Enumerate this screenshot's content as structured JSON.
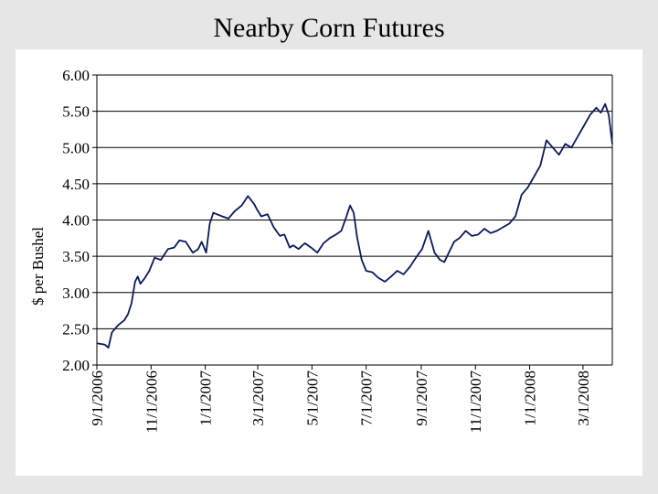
{
  "title": "Nearby Corn Futures",
  "chart_data": {
    "type": "line",
    "title": "Nearby Corn Futures",
    "xlabel": "",
    "ylabel": "$ per Bushel",
    "ylim": [
      2.0,
      6.0
    ],
    "yticks": [
      "2.00",
      "2.50",
      "3.00",
      "3.50",
      "4.00",
      "4.50",
      "5.00",
      "5.50",
      "6.00"
    ],
    "xlim": [
      "2006-09-01",
      "2008-04-03"
    ],
    "xticks": [
      {
        "label": "9/1/2006",
        "date": "2006-09-01"
      },
      {
        "label": "11/1/2006",
        "date": "2006-11-01"
      },
      {
        "label": "1/1/2007",
        "date": "2007-01-01"
      },
      {
        "label": "3/1/2007",
        "date": "2007-03-01"
      },
      {
        "label": "5/1/2007",
        "date": "2007-05-01"
      },
      {
        "label": "7/1/2007",
        "date": "2007-07-01"
      },
      {
        "label": "9/1/2007",
        "date": "2007-09-01"
      },
      {
        "label": "11/1/2007",
        "date": "2007-11-01"
      },
      {
        "label": "1/1/2008",
        "date": "2008-01-01"
      },
      {
        "label": "3/1/2008",
        "date": "2008-03-01"
      }
    ],
    "grid": "horizontal",
    "line_color": "#0a1a5c",
    "series": [
      {
        "x": [
          "2006-09-01",
          "2006-09-10",
          "2006-09-14",
          "2006-09-18",
          "2006-09-25",
          "2006-10-02",
          "2006-10-06",
          "2006-10-10",
          "2006-10-14",
          "2006-10-17",
          "2006-10-20",
          "2006-10-25",
          "2006-10-30",
          "2006-11-05",
          "2006-11-12",
          "2006-11-20",
          "2006-11-27",
          "2006-12-03",
          "2006-12-10",
          "2006-12-18",
          "2006-12-24",
          "2006-12-28",
          "2007-01-02",
          "2007-01-06",
          "2007-01-10",
          "2007-01-14",
          "2007-01-20",
          "2007-01-27",
          "2007-02-03",
          "2007-02-11",
          "2007-02-18",
          "2007-02-25",
          "2007-02-28",
          "2007-03-05",
          "2007-03-12",
          "2007-03-19",
          "2007-03-26",
          "2007-03-31",
          "2007-04-06",
          "2007-04-10",
          "2007-04-16",
          "2007-04-23",
          "2007-04-30",
          "2007-05-07",
          "2007-05-14",
          "2007-05-21",
          "2007-05-28",
          "2007-06-03",
          "2007-06-08",
          "2007-06-13",
          "2007-06-17",
          "2007-06-21",
          "2007-06-26",
          "2007-07-01",
          "2007-07-08",
          "2007-07-15",
          "2007-07-22",
          "2007-07-29",
          "2007-08-05",
          "2007-08-12",
          "2007-08-19",
          "2007-08-26",
          "2007-09-02",
          "2007-09-09",
          "2007-09-16",
          "2007-09-22",
          "2007-09-27",
          "2007-10-02",
          "2007-10-08",
          "2007-10-14",
          "2007-10-21",
          "2007-10-28",
          "2007-11-04",
          "2007-11-11",
          "2007-11-18",
          "2007-11-25",
          "2007-12-02",
          "2007-12-09",
          "2007-12-16",
          "2007-12-23",
          "2007-12-30",
          "2008-01-06",
          "2008-01-13",
          "2008-01-20",
          "2008-01-27",
          "2008-02-03",
          "2008-02-10",
          "2008-02-17",
          "2008-02-24",
          "2008-03-02",
          "2008-03-09",
          "2008-03-16",
          "2008-03-21",
          "2008-03-26",
          "2008-03-30",
          "2008-04-03"
        ],
        "values": [
          2.3,
          2.28,
          2.24,
          2.45,
          2.55,
          2.62,
          2.7,
          2.85,
          3.15,
          3.22,
          3.12,
          3.2,
          3.3,
          3.48,
          3.45,
          3.6,
          3.62,
          3.72,
          3.7,
          3.55,
          3.6,
          3.7,
          3.55,
          3.95,
          4.1,
          4.08,
          4.05,
          4.02,
          4.12,
          4.2,
          4.33,
          4.22,
          4.15,
          4.05,
          4.08,
          3.9,
          3.78,
          3.8,
          3.62,
          3.65,
          3.6,
          3.68,
          3.62,
          3.55,
          3.68,
          3.75,
          3.8,
          3.85,
          4.02,
          4.2,
          4.1,
          3.75,
          3.45,
          3.3,
          3.28,
          3.2,
          3.15,
          3.22,
          3.3,
          3.25,
          3.35,
          3.48,
          3.6,
          3.85,
          3.55,
          3.45,
          3.42,
          3.55,
          3.7,
          3.75,
          3.85,
          3.78,
          3.8,
          3.88,
          3.82,
          3.85,
          3.9,
          3.95,
          4.05,
          4.35,
          4.45,
          4.6,
          4.75,
          5.1,
          5.0,
          4.9,
          5.05,
          5.0,
          5.15,
          5.3,
          5.45,
          5.55,
          5.48,
          5.6,
          5.45,
          5.05
        ]
      }
    ]
  }
}
